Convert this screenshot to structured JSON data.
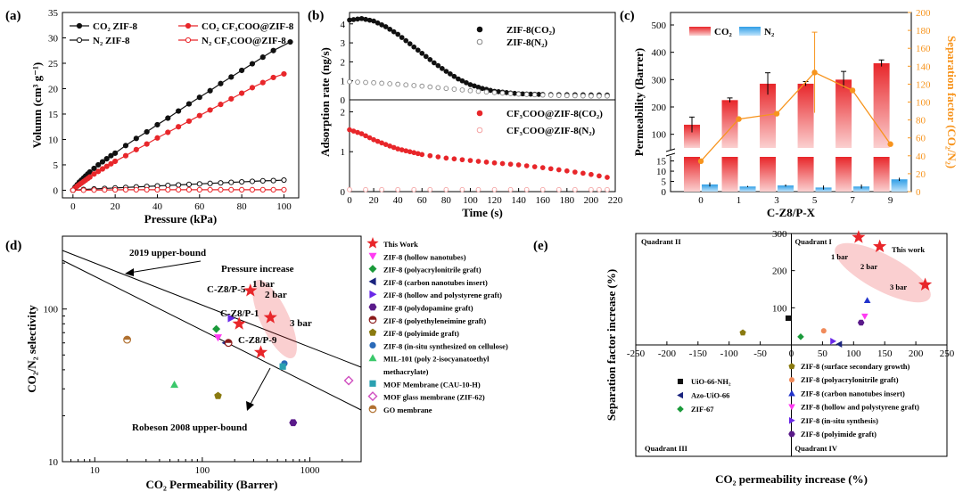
{
  "colors": {
    "black": "#111111",
    "red": "#e8262a",
    "lightred": "#f4a3a3",
    "orange": "#f7941d",
    "blue": "#2f9ee6"
  },
  "panels": {
    "a": "(a)",
    "b": "(b)",
    "c": "(c)",
    "d": "(d)",
    "e": "(e)"
  },
  "chart_data": [
    {
      "id": "a",
      "type": "line",
      "xlabel": "Pressure (kPa)",
      "ylabel": "Volumn (cm³ g⁻¹)",
      "xlim": [
        -5,
        107
      ],
      "ylim": [
        -1.5,
        35
      ],
      "xticks": [
        0,
        20,
        40,
        60,
        80,
        100
      ],
      "yticks": [
        0,
        5,
        10,
        15,
        20,
        25,
        30,
        35
      ],
      "legend": [
        "CO₂ ZIF-8",
        "CO₂ CF₃COO@ZIF-8",
        "N₂  ZIF-8",
        "N₂  CF₃COO@ZIF-8"
      ],
      "series": [
        {
          "name": "CO₂ ZIF-8",
          "color": "#111111",
          "marker": "filled",
          "x": [
            0,
            1,
            2,
            3,
            4,
            5,
            6,
            7,
            8,
            10,
            12,
            14,
            16,
            18,
            20,
            25,
            30,
            35,
            40,
            45,
            50,
            55,
            60,
            65,
            70,
            75,
            80,
            85,
            90,
            95,
            103
          ],
          "y": [
            0,
            0.6,
            1.1,
            1.6,
            2.0,
            2.4,
            2.8,
            3.2,
            3.6,
            4.3,
            5.0,
            5.6,
            6.2,
            6.8,
            7.3,
            8.8,
            10.2,
            11.5,
            12.9,
            14.2,
            15.6,
            17.0,
            18.3,
            19.6,
            21.0,
            22.3,
            23.6,
            24.9,
            26.2,
            27.5,
            29.2
          ]
        },
        {
          "name": "CO₂ CF₃COO@ZIF-8",
          "color": "#e8262a",
          "marker": "filled",
          "x": [
            0,
            1,
            2,
            3,
            4,
            5,
            6,
            7,
            8,
            10,
            12,
            14,
            16,
            18,
            20,
            25,
            30,
            35,
            40,
            45,
            50,
            55,
            60,
            65,
            70,
            75,
            80,
            85,
            90,
            95,
            100
          ],
          "y": [
            0,
            0.4,
            0.8,
            1.1,
            1.4,
            1.7,
            2.0,
            2.3,
            2.6,
            3.2,
            3.7,
            4.2,
            4.7,
            5.2,
            5.7,
            6.8,
            8.0,
            9.1,
            10.3,
            11.4,
            12.5,
            13.6,
            14.7,
            15.8,
            16.9,
            18.0,
            19.1,
            20.2,
            21.2,
            22.2,
            22.9
          ]
        },
        {
          "name": "N₂  ZIF-8",
          "color": "#111111",
          "marker": "open",
          "x": [
            0,
            5,
            10,
            15,
            20,
            25,
            30,
            35,
            40,
            45,
            50,
            55,
            60,
            65,
            70,
            75,
            80,
            85,
            90,
            95,
            100
          ],
          "y": [
            0,
            0.15,
            0.25,
            0.35,
            0.45,
            0.55,
            0.65,
            0.75,
            0.85,
            0.95,
            1.05,
            1.15,
            1.25,
            1.35,
            1.45,
            1.55,
            1.65,
            1.75,
            1.85,
            1.9,
            2.0
          ]
        },
        {
          "name": "N₂  CF₃COO@ZIF-8",
          "color": "#e8262a",
          "marker": "open",
          "x": [
            0,
            5,
            10,
            15,
            20,
            25,
            30,
            35,
            40,
            45,
            50,
            55,
            60,
            65,
            70,
            75,
            80,
            85,
            90,
            95,
            100
          ],
          "y": [
            0,
            0.02,
            0.04,
            0.06,
            0.08,
            0.1,
            0.1,
            0.1,
            0.1,
            0.1,
            0.1,
            0.1,
            0.1,
            0.1,
            0.1,
            0.1,
            0.1,
            0.1,
            0.1,
            0.1,
            0.1
          ]
        }
      ]
    },
    {
      "id": "b",
      "type": "line",
      "xlabel": "Time (s)",
      "ylabel": "Adsorption rate (ng/s)",
      "xlim": [
        0,
        220
      ],
      "xticks": [
        0,
        20,
        40,
        60,
        80,
        100,
        120,
        140,
        160,
        180,
        200,
        220
      ],
      "upper": {
        "ylim": [
          0,
          4.6
        ],
        "yticks": [
          0,
          1,
          2,
          3,
          4
        ]
      },
      "lower": {
        "ylim": [
          0,
          2.3
        ],
        "yticks": [
          0,
          1,
          2
        ]
      },
      "legend_upper": [
        "ZIF-8(CO₂)",
        "ZIF-8(N₂)"
      ],
      "legend_lower": [
        "CF₃COO@ZIF-8(CO₂)",
        "CF₃COO@ZIF-8(N₂)"
      ],
      "series": [
        {
          "name": "ZIF-8(CO₂)",
          "panel": "upper",
          "color": "#111111",
          "marker": "filled",
          "x": [
            0,
            10,
            20,
            30,
            40,
            50,
            60,
            70,
            80,
            90,
            100,
            110,
            120,
            130,
            140,
            150,
            160,
            180,
            200,
            220
          ],
          "y": [
            4.2,
            4.28,
            4.15,
            3.85,
            3.45,
            2.95,
            2.45,
            1.95,
            1.5,
            1.1,
            0.8,
            0.6,
            0.45,
            0.38,
            0.32,
            0.3,
            0.28,
            0.27,
            0.26,
            0.25
          ]
        },
        {
          "name": "ZIF-8(N₂)",
          "panel": "upper",
          "color": "#888888",
          "marker": "open",
          "x": [
            0,
            20,
            40,
            60,
            80,
            100,
            120,
            140,
            160,
            180,
            200,
            220
          ],
          "y": [
            0.95,
            0.9,
            0.82,
            0.72,
            0.6,
            0.48,
            0.38,
            0.3,
            0.25,
            0.22,
            0.2,
            0.2
          ]
        },
        {
          "name": "CF₃COO@ZIF-8(CO₂)",
          "panel": "lower",
          "color": "#e8262a",
          "marker": "filled",
          "x": [
            0,
            10,
            20,
            30,
            40,
            50,
            60,
            80,
            100,
            120,
            140,
            160,
            180,
            200,
            220
          ],
          "y": [
            1.55,
            1.45,
            1.3,
            1.18,
            1.07,
            1.0,
            0.93,
            0.84,
            0.78,
            0.72,
            0.67,
            0.6,
            0.52,
            0.43,
            0.32
          ]
        },
        {
          "name": "CF₃COO@ZIF-8(N₂)",
          "panel": "lower",
          "color": "#f4a3a3",
          "marker": "open",
          "x": [
            0,
            40,
            80,
            120,
            160,
            200,
            220
          ],
          "y": [
            0.05,
            0.05,
            0.05,
            0.05,
            0.05,
            0.05,
            0.05
          ]
        }
      ]
    },
    {
      "id": "c",
      "type": "bar",
      "xlabel": "C-Z8/P-X",
      "ylabel": "Permeability (Barrer)",
      "y2label": "Separation factor (CO₂/N₂)",
      "categories": [
        "0",
        "1",
        "3",
        "5",
        "7",
        "9"
      ],
      "yticks_upper": [
        100,
        200,
        300,
        400,
        500
      ],
      "yticks_lower": [
        0,
        5,
        10,
        15
      ],
      "y2lim": [
        0,
        200
      ],
      "y2ticks": [
        0,
        20,
        40,
        60,
        80,
        100,
        120,
        140,
        160,
        180,
        200
      ],
      "legend": [
        "CO₂",
        "N₂"
      ],
      "series": [
        {
          "name": "CO₂",
          "values": [
            135,
            225,
            285,
            285,
            300,
            360
          ],
          "errors": [
            28,
            8,
            40,
            8,
            30,
            12
          ]
        },
        {
          "name": "N₂",
          "values": [
            3.5,
            2.5,
            3,
            2,
            2.5,
            6
          ],
          "errors": [
            1,
            0.3,
            0.5,
            1,
            1,
            0.8
          ]
        },
        {
          "name": "Separation factor",
          "values": [
            34,
            81,
            87,
            133,
            113,
            53
          ],
          "errors": [
            0,
            0,
            0,
            45,
            0,
            0
          ]
        }
      ]
    },
    {
      "id": "d",
      "type": "scatter",
      "xlabel": "CO₂ Permeability (Barrer)",
      "ylabel": "CO₂/N₂ selectivity",
      "xscale": "log",
      "yscale": "log",
      "xlim": [
        5,
        3000
      ],
      "ylim": [
        10,
        300
      ],
      "xticks": [
        10,
        100,
        1000
      ],
      "yticks": [
        10,
        100
      ],
      "bound_labels": [
        "2019 upper-bound",
        "Robeson 2008 upper-bound"
      ],
      "text_labels": [
        "Pressure increase",
        "C-Z8/P-5",
        "C-Z8/P-1",
        "C-Z8/P-9",
        "1 bar",
        "2 bar",
        "3 bar"
      ],
      "legend": [
        "This Work",
        "ZIF-8 (hollow nanotubes)",
        "ZIF-8 (polyacrylonitrile graft)",
        "ZIF-8 (carbon nanotubes insert)",
        "ZIF-8 (hollow and polystyrene graft)",
        "ZIF-8 (polydopamine graft)",
        "ZIF-8 (polyethyleneimine  graft)",
        "ZIF-8 (polyimide  graft)",
        "ZIF-8 (in-situ synthesized on cellulose)",
        "MIL-101 (poly 2-isocyanatoethyl",
        "methacrylate)",
        "MOF Membrane (CAU-10-H)",
        "MOF glass membrane (ZIF-62)",
        "GO membrane"
      ],
      "points": [
        {
          "x": 280,
          "y": 132,
          "color": "#e8262a",
          "shape": "star"
        },
        {
          "x": 430,
          "y": 88,
          "color": "#e8262a",
          "shape": "star"
        },
        {
          "x": 220,
          "y": 80,
          "color": "#e8262a",
          "shape": "star"
        },
        {
          "x": 350,
          "y": 52,
          "color": "#e8262a",
          "shape": "star"
        },
        {
          "x": 140,
          "y": 65,
          "color": "#ff3bf2",
          "shape": "tri-down"
        },
        {
          "x": 135,
          "y": 74,
          "color": "#1a9a3a",
          "shape": "diamond"
        },
        {
          "x": 165,
          "y": 60,
          "color": "#1a237e",
          "shape": "tri-left"
        },
        {
          "x": 185,
          "y": 87,
          "color": "#6a28e8",
          "shape": "tri-right"
        },
        {
          "x": 700,
          "y": 18,
          "color": "#5a1a8a",
          "shape": "hexagon"
        },
        {
          "x": 175,
          "y": 60,
          "color": "#8b1a1a",
          "shape": "half-circle"
        },
        {
          "x": 140,
          "y": 27,
          "color": "#8a7a10",
          "shape": "pentagon"
        },
        {
          "x": 580,
          "y": 44,
          "color": "#2a6ab8",
          "shape": "circle"
        },
        {
          "x": 55,
          "y": 32,
          "color": "#3bc86b",
          "shape": "tri-up"
        },
        {
          "x": 560,
          "y": 42,
          "color": "#2aa0b0",
          "shape": "square"
        },
        {
          "x": 2300,
          "y": 34,
          "color": "#d050c0",
          "shape": "diamond-open"
        },
        {
          "x": 20,
          "y": 63,
          "color": "#b07030",
          "shape": "half-circle"
        }
      ]
    },
    {
      "id": "e",
      "type": "scatter",
      "xlabel": "CO₂ permeability increase (%)",
      "ylabel": "Separation factor increase (%)",
      "xlim": [
        -250,
        250
      ],
      "ylim": [
        -300,
        300
      ],
      "xticks": [
        -250,
        -200,
        -150,
        -100,
        -50,
        0,
        50,
        100,
        150,
        200,
        250
      ],
      "yticks": [
        100,
        200,
        300
      ],
      "quadrants": [
        "Quadrant II",
        "Quadrant I",
        "Quadrant III",
        "Quadrant IV"
      ],
      "text_labels": [
        "This work",
        "1 bar",
        "2 bar",
        "3 bar"
      ],
      "legend": [
        "ZIF-8 (surface secondary growth)",
        "ZIF-8 (polyacrylonitrile graft)",
        "ZIF-8 (carbon nanotubes insert)",
        "ZIF-8 (hollow and polystyrene graft)",
        "ZIF-8 (in-situ synthesis)",
        "ZIF-8 (polyimide graft)",
        "UiO-66-NH₂",
        "Azo-UiO-66",
        "ZIF-67"
      ],
      "points": [
        {
          "x": 108,
          "y": 290,
          "color": "#e8262a",
          "shape": "star"
        },
        {
          "x": 142,
          "y": 265,
          "color": "#e8262a",
          "shape": "star"
        },
        {
          "x": 215,
          "y": 162,
          "color": "#e8262a",
          "shape": "star"
        },
        {
          "x": -78,
          "y": 33,
          "color": "#8a7a10",
          "shape": "pentagon"
        },
        {
          "x": 52,
          "y": 38,
          "color": "#f08a5a",
          "shape": "circle"
        },
        {
          "x": 122,
          "y": 120,
          "color": "#2233cc",
          "shape": "tri-up"
        },
        {
          "x": 118,
          "y": 77,
          "color": "#ff3bf2",
          "shape": "tri-down"
        },
        {
          "x": 67,
          "y": 10,
          "color": "#6a28e8",
          "shape": "tri-right"
        },
        {
          "x": 112,
          "y": 60,
          "color": "#5a1a8a",
          "shape": "hexagon"
        },
        {
          "x": -5,
          "y": 72,
          "color": "#111111",
          "shape": "square"
        },
        {
          "x": 77,
          "y": 2,
          "color": "#1a237e",
          "shape": "tri-left"
        },
        {
          "x": 15,
          "y": 22,
          "color": "#1a9a3a",
          "shape": "diamond"
        }
      ]
    }
  ]
}
